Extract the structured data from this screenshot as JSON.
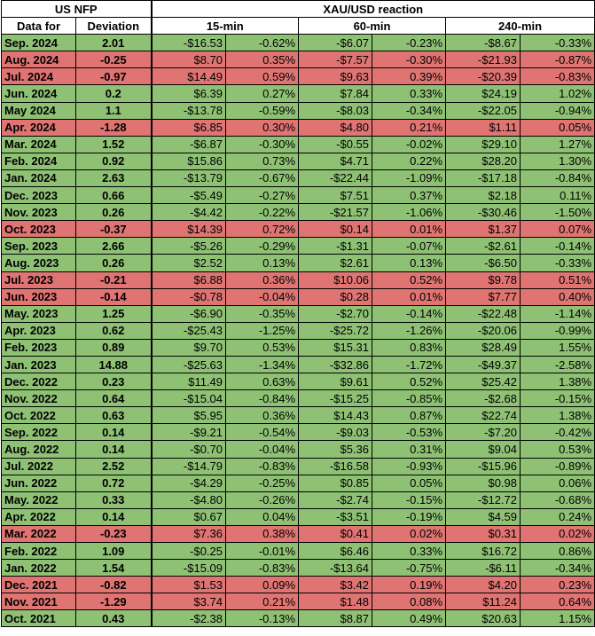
{
  "header": {
    "group_left": "US NFP",
    "group_right": "XAU/USD reaction",
    "col_date": "Data for",
    "col_deviation": "Deviation",
    "col_15": "15-min",
    "col_60": "60-min",
    "col_240": "240-min"
  },
  "colors": {
    "positive": "#8fc175",
    "negative": "#df7472"
  },
  "rows": [
    {
      "date": "Sep. 2024",
      "dev": "2.01",
      "a": "-$16.53",
      "b": "-0.62%",
      "c": "-$6.07",
      "d": "-0.23%",
      "e": "-$8.67",
      "f": "-0.33%",
      "sign": "pos"
    },
    {
      "date": "Aug. 2024",
      "dev": "-0.25",
      "a": "$8.70",
      "b": "0.35%",
      "c": "-$7.57",
      "d": "-0.30%",
      "e": "-$21.93",
      "f": "-0.87%",
      "sign": "neg"
    },
    {
      "date": "Jul. 2024",
      "dev": "-0.97",
      "a": "$14.49",
      "b": "0.59%",
      "c": "$9.63",
      "d": "0.39%",
      "e": "-$20.39",
      "f": "-0.83%",
      "sign": "neg"
    },
    {
      "date": "Jun. 2024",
      "dev": "0.2",
      "a": "$6.39",
      "b": "0.27%",
      "c": "$7.84",
      "d": "0.33%",
      "e": "$24.19",
      "f": "1.02%",
      "sign": "pos"
    },
    {
      "date": "May 2024",
      "dev": "1.1",
      "a": "-$13.78",
      "b": "-0.59%",
      "c": "-$8.03",
      "d": "-0.34%",
      "e": "-$22.05",
      "f": "-0.94%",
      "sign": "pos"
    },
    {
      "date": "Apr. 2024",
      "dev": "-1.28",
      "a": "$6.85",
      "b": "0.30%",
      "c": "$4.80",
      "d": "0.21%",
      "e": "$1.11",
      "f": "0.05%",
      "sign": "neg"
    },
    {
      "date": "Mar. 2024",
      "dev": "1.52",
      "a": "-$6.87",
      "b": "-0.30%",
      "c": "-$0.55",
      "d": "-0.02%",
      "e": "$29.10",
      "f": "1.27%",
      "sign": "pos"
    },
    {
      "date": "Feb. 2024",
      "dev": "0.92",
      "a": "$15.86",
      "b": "0.73%",
      "c": "$4.71",
      "d": "0.22%",
      "e": "$28.20",
      "f": "1.30%",
      "sign": "pos"
    },
    {
      "date": "Jan. 2024",
      "dev": "2.63",
      "a": "-$13.79",
      "b": "-0.67%",
      "c": "-$22.44",
      "d": "-1.09%",
      "e": "-$17.18",
      "f": "-0.84%",
      "sign": "pos"
    },
    {
      "date": "Dec. 2023",
      "dev": "0.66",
      "a": "-$5.49",
      "b": "-0.27%",
      "c": "$7.51",
      "d": "0.37%",
      "e": "$2.18",
      "f": "0.11%",
      "sign": "pos"
    },
    {
      "date": "Nov. 2023",
      "dev": "0.26",
      "a": "-$4.42",
      "b": "-0.22%",
      "c": "-$21.57",
      "d": "-1.06%",
      "e": "-$30.46",
      "f": "-1.50%",
      "sign": "pos"
    },
    {
      "date": "Oct. 2023",
      "dev": "-0.37",
      "a": "$14.39",
      "b": "0.72%",
      "c": "$0.14",
      "d": "0.01%",
      "e": "$1.37",
      "f": "0.07%",
      "sign": "neg"
    },
    {
      "date": "Sep. 2023",
      "dev": "2.66",
      "a": "-$5.26",
      "b": "-0.29%",
      "c": "-$1.31",
      "d": "-0.07%",
      "e": "-$2.61",
      "f": "-0.14%",
      "sign": "pos"
    },
    {
      "date": "Aug. 2023",
      "dev": "0.26",
      "a": "$2.52",
      "b": "0.13%",
      "c": "$2.61",
      "d": "0.13%",
      "e": "-$6.50",
      "f": "-0.33%",
      "sign": "pos"
    },
    {
      "date": "Jul. 2023",
      "dev": "-0.21",
      "a": "$6.88",
      "b": "0.36%",
      "c": "$10.06",
      "d": "0.52%",
      "e": "$9.78",
      "f": "0.51%",
      "sign": "neg"
    },
    {
      "date": "Jun. 2023",
      "dev": "-0.14",
      "a": "-$0.78",
      "b": "-0.04%",
      "c": "$0.28",
      "d": "0.01%",
      "e": "$7.77",
      "f": "0.40%",
      "sign": "neg"
    },
    {
      "date": "May. 2023",
      "dev": "1.25",
      "a": "-$6.90",
      "b": "-0.35%",
      "c": "-$2.70",
      "d": "-0.14%",
      "e": "-$22.48",
      "f": "-1.14%",
      "sign": "pos"
    },
    {
      "date": "Apr. 2023",
      "dev": "0.62",
      "a": "-$25.43",
      "b": "-1.25%",
      "c": "-$25.72",
      "d": "-1.26%",
      "e": "-$20.06",
      "f": "-0.99%",
      "sign": "pos"
    },
    {
      "date": "Feb. 2023",
      "dev": "0.89",
      "a": "$9.70",
      "b": "0.53%",
      "c": "$15.31",
      "d": "0.83%",
      "e": "$28.49",
      "f": "1.55%",
      "sign": "pos"
    },
    {
      "date": "Jan. 2023",
      "dev": "14.88",
      "a": "-$25.63",
      "b": "-1.34%",
      "c": "-$32.86",
      "d": "-1.72%",
      "e": "-$49.37",
      "f": "-2.58%",
      "sign": "pos"
    },
    {
      "date": "Dec. 2022",
      "dev": "0.23",
      "a": "$11.49",
      "b": "0.63%",
      "c": "$9.61",
      "d": "0.52%",
      "e": "$25.42",
      "f": "1.38%",
      "sign": "pos"
    },
    {
      "date": "Nov. 2022",
      "dev": "0.64",
      "a": "-$15.04",
      "b": "-0.84%",
      "c": "-$15.25",
      "d": "-0.85%",
      "e": "-$2.68",
      "f": "-0.15%",
      "sign": "pos"
    },
    {
      "date": "Oct. 2022",
      "dev": "0.63",
      "a": "$5.95",
      "b": "0.36%",
      "c": "$14.43",
      "d": "0.87%",
      "e": "$22.74",
      "f": "1.38%",
      "sign": "pos"
    },
    {
      "date": "Sep. 2022",
      "dev": "0.14",
      "a": "-$9.21",
      "b": "-0.54%",
      "c": "-$9.03",
      "d": "-0.53%",
      "e": "-$7.20",
      "f": "-0.42%",
      "sign": "pos"
    },
    {
      "date": "Aug. 2022",
      "dev": "0.14",
      "a": "-$0.70",
      "b": "-0.04%",
      "c": "$5.36",
      "d": "0.31%",
      "e": "$9.04",
      "f": "0.53%",
      "sign": "pos"
    },
    {
      "date": "Jul. 2022",
      "dev": "2.52",
      "a": "-$14.79",
      "b": "-0.83%",
      "c": "-$16.58",
      "d": "-0.93%",
      "e": "-$15.96",
      "f": "-0.89%",
      "sign": "pos"
    },
    {
      "date": "Jun. 2022",
      "dev": "0.72",
      "a": "-$4.29",
      "b": "-0.25%",
      "c": "$0.85",
      "d": "0.05%",
      "e": "$0.98",
      "f": "0.06%",
      "sign": "pos"
    },
    {
      "date": "May. 2022",
      "dev": "0.33",
      "a": "-$4.80",
      "b": "-0.26%",
      "c": "-$2.74",
      "d": "-0.15%",
      "e": "-$12.72",
      "f": "-0.68%",
      "sign": "pos"
    },
    {
      "date": "Apr. 2022",
      "dev": "0.14",
      "a": "$0.67",
      "b": "0.04%",
      "c": "-$3.51",
      "d": "-0.19%",
      "e": "$4.59",
      "f": "0.24%",
      "sign": "pos"
    },
    {
      "date": "Mar. 2022",
      "dev": "-0.23",
      "a": "$7.36",
      "b": "0.38%",
      "c": "$0.41",
      "d": "0.02%",
      "e": "$0.31",
      "f": "0.02%",
      "sign": "neg"
    },
    {
      "date": "Feb. 2022",
      "dev": "1.09",
      "a": "-$0.25",
      "b": "-0.01%",
      "c": "$6.46",
      "d": "0.33%",
      "e": "$16.72",
      "f": "0.86%",
      "sign": "pos"
    },
    {
      "date": "Jan. 2022",
      "dev": "1.54",
      "a": "-$15.09",
      "b": "-0.83%",
      "c": "-$13.64",
      "d": "-0.75%",
      "e": "-$6.11",
      "f": "-0.34%",
      "sign": "pos"
    },
    {
      "date": "Dec. 2021",
      "dev": "-0.82",
      "a": "$1.53",
      "b": "0.09%",
      "c": "$3.42",
      "d": "0.19%",
      "e": "$4.20",
      "f": "0.23%",
      "sign": "neg"
    },
    {
      "date": "Nov. 2021",
      "dev": "-1.29",
      "a": "$3.74",
      "b": "0.21%",
      "c": "$1.48",
      "d": "0.08%",
      "e": "$11.24",
      "f": "0.64%",
      "sign": "neg"
    },
    {
      "date": "Oct. 2021",
      "dev": "0.43",
      "a": "-$2.38",
      "b": "-0.13%",
      "c": "$8.87",
      "d": "0.49%",
      "e": "$20.63",
      "f": "1.15%",
      "sign": "pos"
    }
  ]
}
